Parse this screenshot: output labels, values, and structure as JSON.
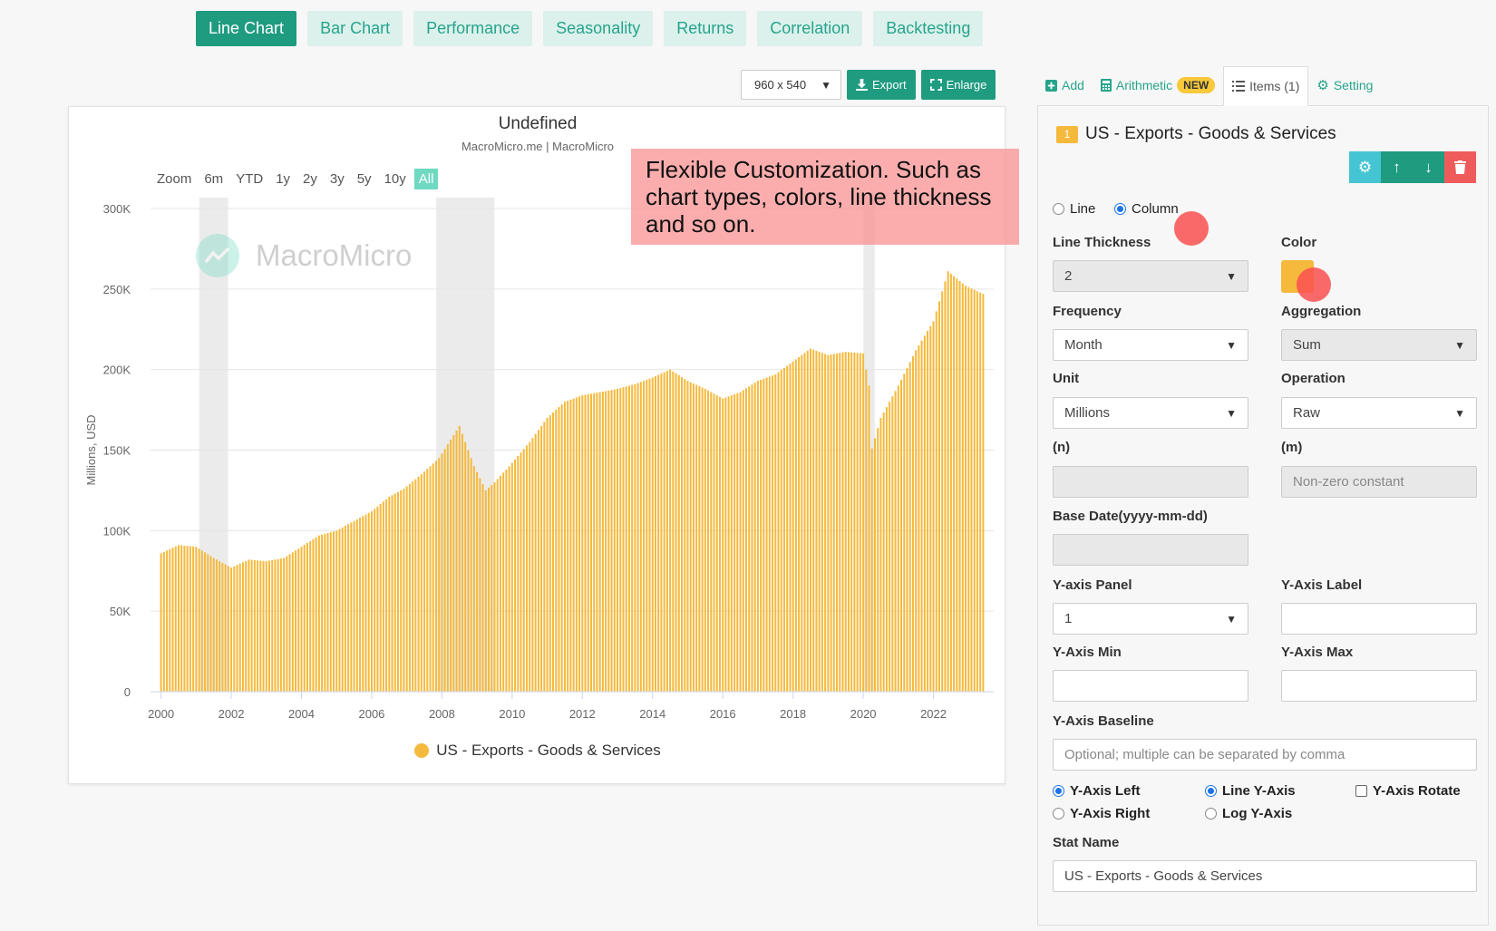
{
  "top_tabs": [
    "Line Chart",
    "Bar Chart",
    "Performance",
    "Seasonality",
    "Returns",
    "Correlation",
    "Backtesting"
  ],
  "toolbar": {
    "size": "960 x 540",
    "export": "Export",
    "enlarge": "Enlarge"
  },
  "chart": {
    "title": "Undefined",
    "subtitle": "MacroMicro.me | MacroMicro",
    "zoom_label": "Zoom",
    "zoom_options": [
      "6m",
      "YTD",
      "1y",
      "2y",
      "3y",
      "5y",
      "10y",
      "All"
    ],
    "watermark": "MacroMicro",
    "legend": "US - Exports - Goods & Services"
  },
  "callout": "Flexible Customization. Such as chart types, colors, line thickness and so on.",
  "panel": {
    "tabs": {
      "add": "Add",
      "arithmetic": "Arithmetic",
      "new_badge": "NEW",
      "items": "Items (1)",
      "setting": "Setting"
    },
    "item_number": "1",
    "item_title": "US - Exports - Goods & Services",
    "type_line": "Line",
    "type_column": "Column",
    "line_thickness_label": "Line Thickness",
    "line_thickness_value": "2",
    "color_label": "Color",
    "frequency_label": "Frequency",
    "frequency_value": "Month",
    "aggregation_label": "Aggregation",
    "aggregation_value": "Sum",
    "unit_label": "Unit",
    "unit_value": "Millions",
    "operation_label": "Operation",
    "operation_value": "Raw",
    "n_label": "(n)",
    "m_label": "(m)",
    "m_placeholder": "Non-zero constant",
    "base_date_label": "Base Date(yyyy-mm-dd)",
    "y_panel_label": "Y-axis Panel",
    "y_panel_value": "1",
    "y_axis_label_label": "Y-Axis Label",
    "y_min_label": "Y-Axis Min",
    "y_max_label": "Y-Axis Max",
    "y_baseline_label": "Y-Axis Baseline",
    "y_baseline_placeholder": "Optional; multiple can be separated by comma",
    "y_left": "Y-Axis Left",
    "y_right": "Y-Axis Right",
    "line_y": "Line Y-Axis",
    "log_y": "Log Y-Axis",
    "y_rotate": "Y-Axis Rotate",
    "stat_name_label": "Stat Name",
    "stat_name_value": "US - Exports - Goods & Services"
  },
  "colors": {
    "accent": "#1f9b80",
    "series": "#f5b93c",
    "recession": "#ebebeb"
  },
  "chart_data": {
    "type": "bar",
    "title": "Undefined",
    "subtitle": "MacroMicro.me | MacroMicro",
    "ylabel": "Millions, USD",
    "ylim": [
      0,
      300000
    ],
    "y_ticks": [
      "0",
      "50K",
      "100K",
      "150K",
      "200K",
      "250K",
      "300K"
    ],
    "x_ticks": [
      "2000",
      "2002",
      "2004",
      "2006",
      "2008",
      "2010",
      "2012",
      "2014",
      "2016",
      "2018",
      "2020",
      "2022"
    ],
    "x_range": [
      "2000-01",
      "2023-06"
    ],
    "recession_shading": [
      [
        "2001-03",
        "2001-11"
      ],
      [
        "2007-12",
        "2009-06"
      ],
      [
        "2020-02",
        "2020-04"
      ]
    ],
    "grid": true,
    "legend_position": "bottom",
    "series": [
      {
        "name": "US - Exports - Goods & Services",
        "frequency": "monthly",
        "start": "2000-01",
        "points": [
          [
            "2000-01",
            86000
          ],
          [
            "2000-07",
            91000
          ],
          [
            "2001-01",
            90000
          ],
          [
            "2001-07",
            83000
          ],
          [
            "2002-01",
            77000
          ],
          [
            "2002-07",
            82000
          ],
          [
            "2003-01",
            81000
          ],
          [
            "2003-07",
            83000
          ],
          [
            "2004-01",
            90000
          ],
          [
            "2004-07",
            97000
          ],
          [
            "2005-01",
            100000
          ],
          [
            "2005-07",
            106000
          ],
          [
            "2006-01",
            112000
          ],
          [
            "2006-07",
            121000
          ],
          [
            "2006-12",
            126000
          ],
          [
            "2007-06",
            135000
          ],
          [
            "2007-12",
            145000
          ],
          [
            "2008-07",
            165000
          ],
          [
            "2008-12",
            140000
          ],
          [
            "2009-04",
            125000
          ],
          [
            "2009-07",
            130000
          ],
          [
            "2010-01",
            142000
          ],
          [
            "2010-07",
            155000
          ],
          [
            "2011-01",
            170000
          ],
          [
            "2011-07",
            180000
          ],
          [
            "2012-01",
            184000
          ],
          [
            "2012-07",
            186000
          ],
          [
            "2013-01",
            188000
          ],
          [
            "2013-07",
            191000
          ],
          [
            "2014-01",
            195000
          ],
          [
            "2014-07",
            200000
          ],
          [
            "2015-01",
            193000
          ],
          [
            "2015-07",
            188000
          ],
          [
            "2016-01",
            182000
          ],
          [
            "2016-07",
            186000
          ],
          [
            "2017-01",
            193000
          ],
          [
            "2017-07",
            197000
          ],
          [
            "2018-01",
            205000
          ],
          [
            "2018-07",
            213000
          ],
          [
            "2019-01",
            209000
          ],
          [
            "2019-07",
            211000
          ],
          [
            "2020-01",
            210000
          ],
          [
            "2020-03",
            190000
          ],
          [
            "2020-04",
            151000
          ],
          [
            "2020-07",
            170000
          ],
          [
            "2021-01",
            190000
          ],
          [
            "2021-07",
            212000
          ],
          [
            "2022-01",
            230000
          ],
          [
            "2022-06",
            261000
          ],
          [
            "2022-12",
            252000
          ],
          [
            "2023-06",
            247000
          ]
        ]
      }
    ]
  }
}
